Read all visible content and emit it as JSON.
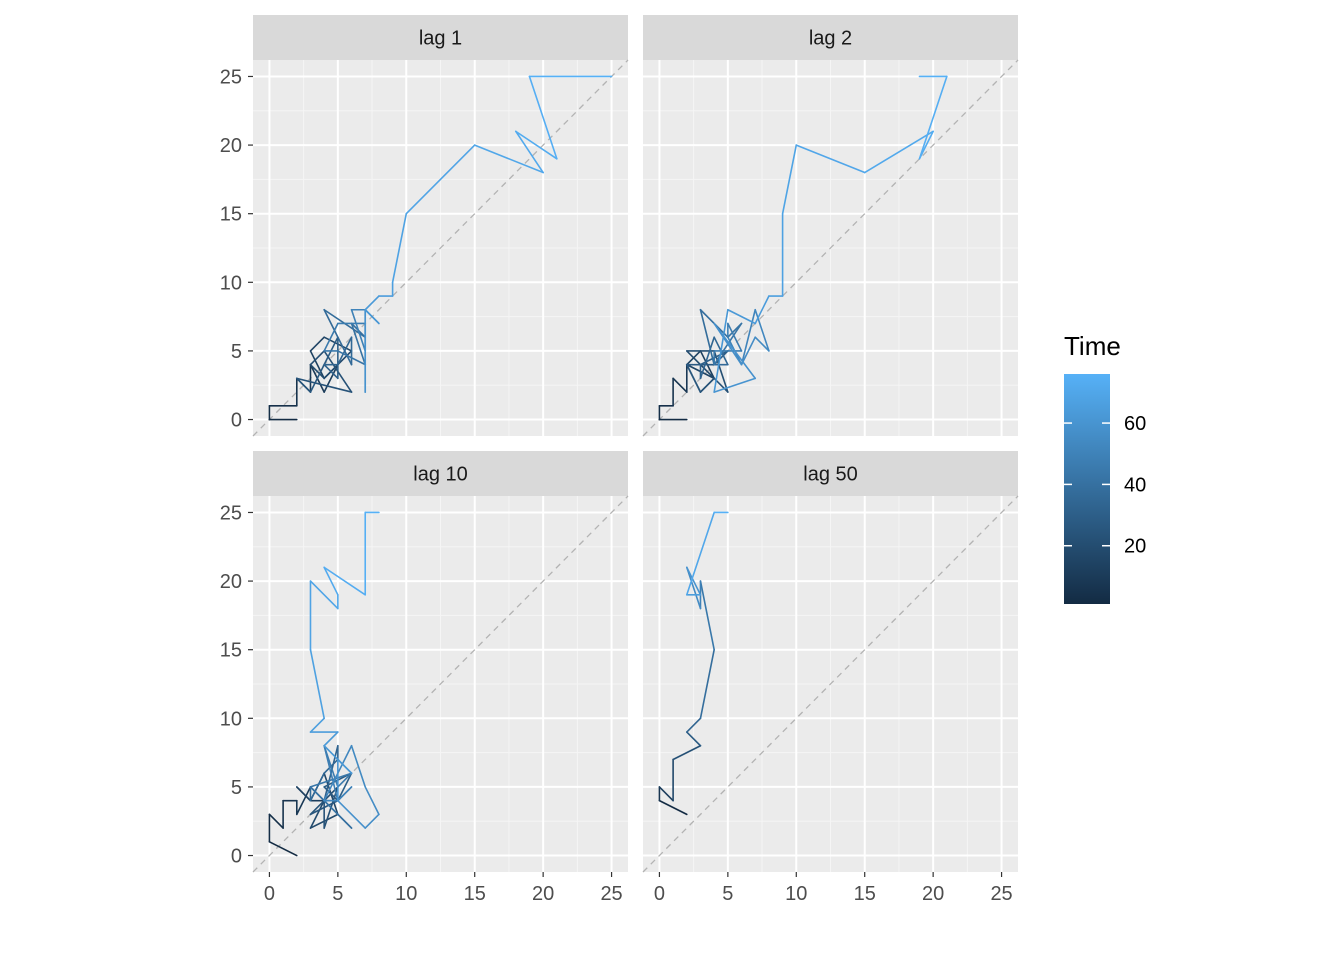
{
  "chart_data": {
    "type": "line",
    "subtype": "lag-plot",
    "xlim": [
      -1.2,
      26.2
    ],
    "ylim": [
      -1.2,
      26.2
    ],
    "x_ticks": [
      0,
      5,
      10,
      15,
      20,
      25
    ],
    "y_ticks": [
      0,
      5,
      10,
      15,
      20,
      25
    ],
    "grid": true,
    "reference_line": {
      "type": "diagonal",
      "style": "dashed",
      "color": "#b3b3b3"
    },
    "legend": {
      "title": "Time",
      "placement": "right",
      "type": "colorbar",
      "range": [
        1,
        76
      ],
      "ticks": [
        20,
        40,
        60
      ],
      "color_low": "#132B43",
      "color_high": "#56B1F7"
    },
    "panels": [
      {
        "label": "lag 1",
        "points": [
          [
            2,
            0
          ],
          [
            0,
            0
          ],
          [
            0,
            1
          ],
          [
            2,
            1
          ],
          [
            2,
            3
          ],
          [
            3,
            2
          ],
          [
            3,
            4
          ],
          [
            4,
            2
          ],
          [
            5,
            4
          ],
          [
            4,
            3
          ],
          [
            3,
            5
          ],
          [
            4,
            6
          ],
          [
            6,
            5
          ],
          [
            4,
            3
          ],
          [
            3,
            4
          ],
          [
            4,
            5
          ],
          [
            6,
            2
          ],
          [
            2,
            3
          ],
          [
            3,
            2
          ],
          [
            4,
            4
          ],
          [
            5,
            6
          ],
          [
            5,
            3
          ],
          [
            4,
            4
          ],
          [
            5,
            4
          ],
          [
            6,
            6
          ],
          [
            6,
            4
          ],
          [
            4,
            8
          ],
          [
            7,
            6
          ],
          [
            6,
            7
          ],
          [
            7,
            4
          ],
          [
            5,
            5
          ],
          [
            4,
            5
          ],
          [
            5,
            7
          ],
          [
            7,
            7
          ],
          [
            7,
            5
          ],
          [
            6,
            8
          ],
          [
            7,
            8
          ],
          [
            7,
            6
          ],
          [
            7,
            4
          ],
          [
            7,
            4
          ],
          [
            7,
            3
          ],
          [
            7,
            2
          ],
          [
            7,
            8
          ],
          [
            8,
            7
          ],
          [
            7,
            8
          ],
          [
            8,
            9
          ],
          [
            9,
            9
          ],
          [
            9,
            10
          ],
          [
            10,
            15
          ],
          [
            15,
            20
          ],
          [
            20,
            18
          ],
          [
            18,
            21
          ],
          [
            21,
            19
          ],
          [
            19,
            25
          ],
          [
            25,
            25
          ]
        ]
      },
      {
        "label": "lag 2",
        "points": [
          [
            2,
            0
          ],
          [
            0,
            0
          ],
          [
            0,
            1
          ],
          [
            1,
            1
          ],
          [
            1,
            3
          ],
          [
            2,
            2
          ],
          [
            2,
            4
          ],
          [
            3,
            2
          ],
          [
            4,
            3
          ],
          [
            3,
            5
          ],
          [
            2,
            4
          ],
          [
            4,
            3
          ],
          [
            3,
            4
          ],
          [
            2,
            5
          ],
          [
            4,
            5
          ],
          [
            5,
            2
          ],
          [
            4,
            3
          ],
          [
            3,
            2
          ],
          [
            2,
            4
          ],
          [
            4,
            4
          ],
          [
            5,
            5
          ],
          [
            3,
            4
          ],
          [
            3,
            3
          ],
          [
            4,
            6
          ],
          [
            5,
            4
          ],
          [
            4,
            4
          ],
          [
            3,
            8
          ],
          [
            5,
            6
          ],
          [
            6,
            7
          ],
          [
            4,
            4
          ],
          [
            4,
            5
          ],
          [
            6,
            5
          ],
          [
            5,
            7
          ],
          [
            5,
            6
          ],
          [
            6,
            4
          ],
          [
            7,
            8
          ],
          [
            8,
            5
          ],
          [
            7,
            6
          ],
          [
            6,
            4
          ],
          [
            4,
            7
          ],
          [
            7,
            3
          ],
          [
            4,
            2
          ],
          [
            5,
            8
          ],
          [
            7,
            7
          ],
          [
            8,
            9
          ],
          [
            9,
            9
          ],
          [
            9,
            15
          ],
          [
            10,
            20
          ],
          [
            15,
            18
          ],
          [
            20,
            21
          ],
          [
            19,
            19
          ],
          [
            21,
            25
          ],
          [
            19,
            25
          ]
        ]
      },
      {
        "label": "lag 10",
        "points": [
          [
            2,
            0
          ],
          [
            0,
            1
          ],
          [
            0,
            3
          ],
          [
            1,
            2
          ],
          [
            1,
            4
          ],
          [
            2,
            4
          ],
          [
            2,
            3
          ],
          [
            3,
            5
          ],
          [
            4,
            4
          ],
          [
            3,
            4
          ],
          [
            2,
            5
          ],
          [
            3,
            4
          ],
          [
            4,
            6
          ],
          [
            5,
            3
          ],
          [
            3,
            2
          ],
          [
            4,
            4
          ],
          [
            5,
            5
          ],
          [
            4,
            2
          ],
          [
            4,
            4
          ],
          [
            3,
            3
          ],
          [
            5,
            4
          ],
          [
            4,
            5
          ],
          [
            6,
            6
          ],
          [
            5,
            4
          ],
          [
            4,
            4
          ],
          [
            5,
            8
          ],
          [
            5,
            7
          ],
          [
            4,
            6
          ],
          [
            3,
            4
          ],
          [
            3,
            5
          ],
          [
            6,
            2
          ],
          [
            5,
            3
          ],
          [
            4,
            4
          ],
          [
            3,
            5
          ],
          [
            6,
            6
          ],
          [
            5,
            5
          ],
          [
            4,
            8
          ],
          [
            5,
            4
          ],
          [
            6,
            5
          ],
          [
            5,
            4
          ],
          [
            4,
            4
          ],
          [
            6,
            8
          ],
          [
            7,
            5
          ],
          [
            8,
            3
          ],
          [
            7,
            2
          ],
          [
            5,
            4
          ],
          [
            5,
            7
          ],
          [
            6,
            6
          ],
          [
            4,
            8
          ],
          [
            5,
            9
          ],
          [
            3,
            9
          ],
          [
            4,
            10
          ],
          [
            3,
            15
          ],
          [
            3,
            20
          ],
          [
            5,
            18
          ],
          [
            5,
            19
          ],
          [
            4,
            21
          ],
          [
            7,
            19
          ],
          [
            7,
            25
          ],
          [
            8,
            25
          ]
        ]
      },
      {
        "label": "lag 50",
        "points": [
          [
            2,
            3
          ],
          [
            0,
            4
          ],
          [
            0,
            5
          ],
          [
            1,
            4
          ],
          [
            1,
            7
          ],
          [
            3,
            8
          ],
          [
            2,
            9
          ],
          [
            3,
            10
          ],
          [
            4,
            15
          ],
          [
            3,
            20
          ],
          [
            3,
            18
          ],
          [
            2,
            21
          ],
          [
            3,
            19
          ],
          [
            2,
            19
          ],
          [
            4,
            25
          ],
          [
            5,
            25
          ]
        ]
      }
    ]
  }
}
